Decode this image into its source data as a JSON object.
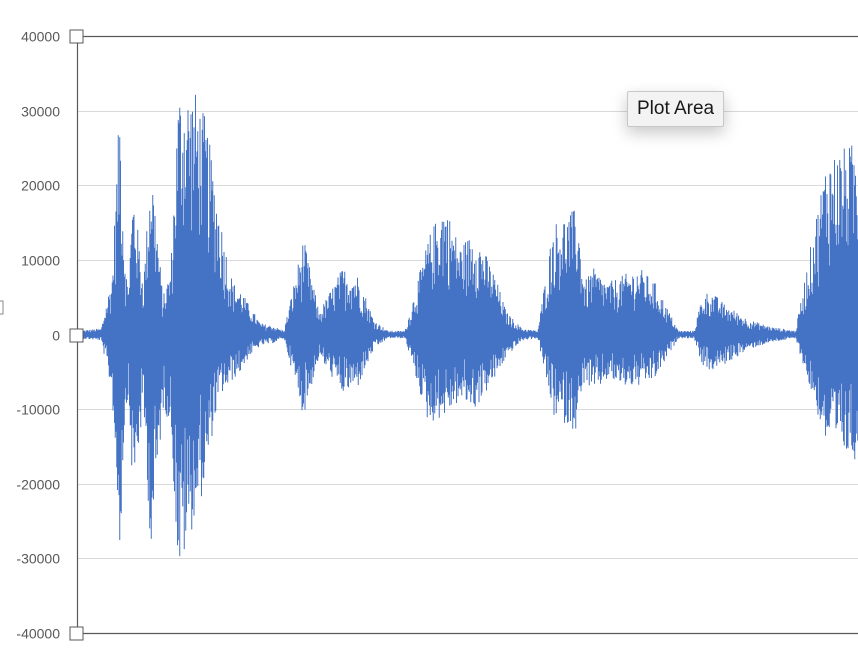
{
  "chart_data": {
    "type": "area",
    "title": "",
    "xlabel": "",
    "ylabel": "",
    "ylim": [
      -40000,
      40000
    ],
    "ytick_values": [
      40000,
      30000,
      20000,
      10000,
      0,
      -10000,
      -20000,
      -30000,
      -40000
    ],
    "ytick_labels": [
      "40000",
      "30000",
      "20000",
      "10000",
      "0",
      "-10000",
      "-20000",
      "-30000",
      "-40000"
    ],
    "grid": true,
    "legend": "none",
    "series_color": "#4472c4",
    "envelope": {
      "x_fraction": [
        0.0,
        0.031,
        0.045,
        0.055,
        0.06,
        0.065,
        0.072,
        0.085,
        0.095,
        0.11,
        0.12,
        0.13,
        0.15,
        0.165,
        0.175,
        0.185,
        0.195,
        0.2,
        0.21,
        0.22,
        0.235,
        0.25,
        0.265,
        0.29,
        0.31,
        0.34,
        0.36,
        0.38,
        0.398,
        0.42,
        0.45,
        0.47,
        0.49,
        0.51,
        0.535,
        0.55,
        0.57,
        0.59,
        0.61,
        0.64,
        0.65,
        0.66,
        0.68,
        0.7,
        0.72,
        0.74,
        0.77,
        0.79,
        0.8,
        0.81,
        0.83,
        0.86,
        0.89,
        0.92,
        0.96,
        1.0
      ],
      "top": [
        500,
        800,
        8000,
        32000,
        14000,
        6000,
        20000,
        7000,
        24000,
        5000,
        9000,
        33000,
        33000,
        29000,
        22000,
        15000,
        9000,
        7000,
        6000,
        4000,
        1500,
        1200,
        500,
        13000,
        3000,
        9000,
        8000,
        2000,
        500,
        500,
        13000,
        18000,
        12000,
        14000,
        8000,
        3000,
        800,
        500,
        15000,
        17000,
        7000,
        9000,
        7000,
        8000,
        9000,
        7000,
        500,
        500,
        5000,
        6000,
        4000,
        2000,
        1000,
        500,
        24000,
        26000
      ],
      "bottom": [
        -500,
        -800,
        -8000,
        -30000,
        -14000,
        -8000,
        -22000,
        -10000,
        -30000,
        -10000,
        -12000,
        -33000,
        -25000,
        -20000,
        -12000,
        -8000,
        -7000,
        -6000,
        -5000,
        -3000,
        -1500,
        -1200,
        -500,
        -11000,
        -3000,
        -8000,
        -7000,
        -2000,
        -500,
        -500,
        -12000,
        -11000,
        -9000,
        -10000,
        -6000,
        -3000,
        -800,
        -500,
        -11000,
        -13000,
        -6000,
        -8000,
        -6000,
        -7000,
        -7000,
        -6000,
        -500,
        -500,
        -4000,
        -5000,
        -4000,
        -2000,
        -1000,
        -500,
        -15000,
        -17000
      ]
    }
  },
  "tooltip": {
    "text": "Plot Area"
  }
}
